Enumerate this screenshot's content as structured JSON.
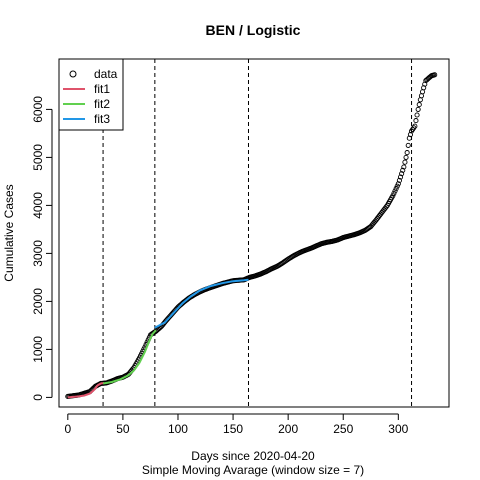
{
  "chart_data": {
    "type": "scatter",
    "title": "BEN / Logistic",
    "xlabel": "Days since 2020-04-20",
    "xlabel2": "Simple Moving Avarage (window size = 7)",
    "ylabel": "Cumulative Cases",
    "xlim": [
      -8,
      346
    ],
    "ylim": [
      -200,
      7050
    ],
    "xticks": [
      0,
      50,
      100,
      150,
      200,
      250,
      300
    ],
    "yticks": [
      0,
      1000,
      2000,
      3000,
      4000,
      5000,
      6000
    ],
    "vlines": [
      32,
      79,
      164,
      312
    ],
    "legend": {
      "position": "top-left",
      "entries": [
        {
          "label": "data",
          "kind": "point",
          "color": "#000000"
        },
        {
          "label": "fit1",
          "kind": "line",
          "color": "#DF536B"
        },
        {
          "label": "fit2",
          "kind": "line",
          "color": "#61D04F"
        },
        {
          "label": "fit3",
          "kind": "line",
          "color": "#2297E6"
        }
      ]
    },
    "data_series": {
      "name": "data",
      "points": [
        [
          0,
          20
        ],
        [
          10,
          50
        ],
        [
          20,
          120
        ],
        [
          25,
          230
        ],
        [
          30,
          290
        ],
        [
          35,
          300
        ],
        [
          40,
          340
        ],
        [
          45,
          390
        ],
        [
          50,
          420
        ],
        [
          55,
          480
        ],
        [
          60,
          620
        ],
        [
          65,
          820
        ],
        [
          70,
          1050
        ],
        [
          75,
          1300
        ],
        [
          80,
          1380
        ],
        [
          85,
          1480
        ],
        [
          90,
          1620
        ],
        [
          95,
          1750
        ],
        [
          100,
          1880
        ],
        [
          105,
          1980
        ],
        [
          110,
          2070
        ],
        [
          115,
          2140
        ],
        [
          120,
          2200
        ],
        [
          125,
          2250
        ],
        [
          130,
          2290
        ],
        [
          135,
          2330
        ],
        [
          140,
          2370
        ],
        [
          145,
          2400
        ],
        [
          150,
          2430
        ],
        [
          155,
          2440
        ],
        [
          160,
          2450
        ],
        [
          165,
          2500
        ],
        [
          170,
          2530
        ],
        [
          175,
          2570
        ],
        [
          180,
          2620
        ],
        [
          185,
          2680
        ],
        [
          190,
          2730
        ],
        [
          195,
          2800
        ],
        [
          200,
          2880
        ],
        [
          205,
          2950
        ],
        [
          210,
          3010
        ],
        [
          215,
          3060
        ],
        [
          220,
          3100
        ],
        [
          225,
          3150
        ],
        [
          230,
          3200
        ],
        [
          235,
          3230
        ],
        [
          240,
          3250
        ],
        [
          245,
          3280
        ],
        [
          250,
          3330
        ],
        [
          255,
          3360
        ],
        [
          260,
          3390
        ],
        [
          265,
          3430
        ],
        [
          270,
          3480
        ],
        [
          275,
          3560
        ],
        [
          280,
          3700
        ],
        [
          285,
          3850
        ],
        [
          290,
          4000
        ],
        [
          295,
          4200
        ],
        [
          300,
          4450
        ],
        [
          305,
          4800
        ],
        [
          308,
          5100
        ],
        [
          310,
          5400
        ],
        [
          312,
          5550
        ],
        [
          315,
          5650
        ],
        [
          318,
          6000
        ],
        [
          320,
          6200
        ],
        [
          323,
          6450
        ],
        [
          325,
          6600
        ],
        [
          330,
          6700
        ],
        [
          333,
          6720
        ]
      ]
    },
    "fits": [
      {
        "name": "fit1",
        "color": "#DF536B",
        "points": [
          [
            0,
            0
          ],
          [
            5,
            10
          ],
          [
            10,
            20
          ],
          [
            15,
            40
          ],
          [
            20,
            80
          ],
          [
            24,
            160
          ],
          [
            27,
            250
          ],
          [
            30,
            290
          ],
          [
            33,
            300
          ]
        ]
      },
      {
        "name": "fit2",
        "color": "#61D04F",
        "points": [
          [
            32,
            290
          ],
          [
            40,
            320
          ],
          [
            48,
            380
          ],
          [
            55,
            460
          ],
          [
            60,
            560
          ],
          [
            65,
            720
          ],
          [
            70,
            950
          ],
          [
            74,
            1180
          ],
          [
            77,
            1320
          ],
          [
            80,
            1400
          ]
        ]
      },
      {
        "name": "fit3",
        "color": "#2297E6",
        "points": [
          [
            79,
            1450
          ],
          [
            88,
            1560
          ],
          [
            96,
            1760
          ],
          [
            104,
            1960
          ],
          [
            112,
            2110
          ],
          [
            120,
            2230
          ],
          [
            130,
            2320
          ],
          [
            140,
            2380
          ],
          [
            150,
            2420
          ],
          [
            160,
            2440
          ],
          [
            164,
            2450
          ]
        ]
      }
    ]
  }
}
